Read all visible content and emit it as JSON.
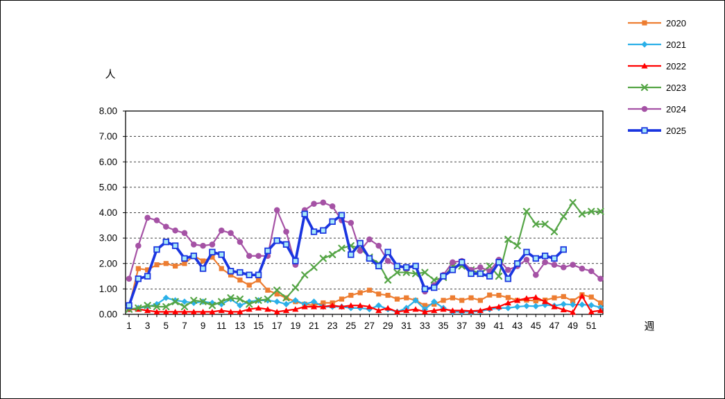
{
  "chart_data": {
    "type": "line",
    "xlabel": "週",
    "ylabel": "人",
    "x_weeks": 52,
    "xlim": [
      1,
      52
    ],
    "ylim": [
      0,
      8
    ],
    "grid": "horizontal-dashed",
    "legend_position": "top-right",
    "y_tick_labels": [
      "0.00",
      "1.00",
      "2.00",
      "3.00",
      "4.00",
      "5.00",
      "6.00",
      "7.00",
      "8.00"
    ],
    "x_tick_labels": [
      "1",
      "3",
      "5",
      "7",
      "9",
      "11",
      "13",
      "15",
      "17",
      "19",
      "21",
      "23",
      "25",
      "27",
      "29",
      "31",
      "33",
      "35",
      "37",
      "39",
      "41",
      "43",
      "45",
      "47",
      "49",
      "51"
    ],
    "series": [
      {
        "name": "2020",
        "color": "#ED7D31",
        "marker": "square",
        "line_width": 2.2,
        "values": [
          0.3,
          1.8,
          1.75,
          1.95,
          2.0,
          1.9,
          2.0,
          2.3,
          2.1,
          2.25,
          1.8,
          1.55,
          1.35,
          1.15,
          1.35,
          0.95,
          0.8,
          0.65,
          0.5,
          0.4,
          0.35,
          0.45,
          0.45,
          0.6,
          0.75,
          0.85,
          0.95,
          0.8,
          0.75,
          0.6,
          0.65,
          0.55,
          0.35,
          0.4,
          0.55,
          0.65,
          0.55,
          0.65,
          0.55,
          0.76,
          0.75,
          0.66,
          0.55,
          0.56,
          0.53,
          0.56,
          0.65,
          0.7,
          0.53,
          0.77,
          0.68,
          0.45
        ]
      },
      {
        "name": "2021",
        "color": "#2BB0E8",
        "marker": "diamond",
        "line_width": 2.2,
        "values": [
          0.2,
          0.25,
          0.3,
          0.4,
          0.65,
          0.55,
          0.5,
          0.45,
          0.5,
          0.45,
          0.4,
          0.6,
          0.35,
          0.5,
          0.55,
          0.55,
          0.5,
          0.4,
          0.55,
          0.4,
          0.5,
          0.3,
          0.3,
          0.3,
          0.25,
          0.25,
          0.2,
          0.35,
          0.2,
          0.1,
          0.25,
          0.55,
          0.2,
          0.5,
          0.25,
          0.1,
          0.1,
          0.1,
          0.12,
          0.2,
          0.25,
          0.25,
          0.3,
          0.33,
          0.32,
          0.37,
          0.34,
          0.4,
          0.38,
          0.38,
          0.36,
          0.27
        ]
      },
      {
        "name": "2022",
        "color": "#FF0000",
        "marker": "triangle",
        "line_width": 2.2,
        "values": [
          0.2,
          0.2,
          0.15,
          0.1,
          0.1,
          0.1,
          0.1,
          0.1,
          0.1,
          0.1,
          0.15,
          0.1,
          0.1,
          0.2,
          0.25,
          0.2,
          0.1,
          0.15,
          0.2,
          0.3,
          0.3,
          0.3,
          0.35,
          0.3,
          0.35,
          0.35,
          0.3,
          0.15,
          0.25,
          0.1,
          0.15,
          0.2,
          0.1,
          0.15,
          0.2,
          0.15,
          0.15,
          0.13,
          0.15,
          0.25,
          0.3,
          0.45,
          0.55,
          0.63,
          0.67,
          0.5,
          0.3,
          0.18,
          0.08,
          0.72,
          0.1,
          0.15
        ]
      },
      {
        "name": "2023",
        "color": "#55A546",
        "marker": "x",
        "line_width": 2.2,
        "values": [
          0.2,
          0.25,
          0.35,
          0.3,
          0.3,
          0.5,
          0.3,
          0.55,
          0.5,
          0.35,
          0.5,
          0.65,
          0.6,
          0.4,
          0.55,
          0.6,
          0.95,
          0.65,
          1.05,
          1.55,
          1.85,
          2.2,
          2.35,
          2.6,
          2.7,
          2.6,
          2.25,
          2.0,
          1.35,
          1.65,
          1.65,
          1.6,
          1.65,
          1.35,
          1.45,
          1.9,
          1.9,
          1.75,
          1.6,
          1.9,
          1.5,
          2.95,
          2.7,
          4.05,
          3.55,
          3.55,
          3.25,
          3.85,
          4.4,
          3.95,
          4.05,
          4.05
        ]
      },
      {
        "name": "2024",
        "color": "#A552A5",
        "marker": "circle",
        "line_width": 2.2,
        "values": [
          1.4,
          2.7,
          3.8,
          3.7,
          3.45,
          3.3,
          3.2,
          2.75,
          2.7,
          2.75,
          3.3,
          3.2,
          2.85,
          2.3,
          2.3,
          2.3,
          4.1,
          3.25,
          1.95,
          4.1,
          4.35,
          4.4,
          4.25,
          3.7,
          3.6,
          2.5,
          2.95,
          2.7,
          2.1,
          1.9,
          1.8,
          1.9,
          0.9,
          1.15,
          1.55,
          2.05,
          2.1,
          1.75,
          1.85,
          1.7,
          2.15,
          1.75,
          1.9,
          2.15,
          1.55,
          2.05,
          1.95,
          1.85,
          1.95,
          1.8,
          1.7,
          1.4
        ]
      },
      {
        "name": "2025",
        "color": "#1A35E0",
        "marker": "square-open",
        "marker_fill": "#A8EAF8",
        "line_width": 3.8,
        "values": [
          0.35,
          1.4,
          1.5,
          2.55,
          2.85,
          2.7,
          2.2,
          2.3,
          1.8,
          2.45,
          2.35,
          1.7,
          1.65,
          1.55,
          1.55,
          2.5,
          2.9,
          2.75,
          2.1,
          3.95,
          3.25,
          3.3,
          3.65,
          3.9,
          2.35,
          2.8,
          2.2,
          1.9,
          2.45,
          1.9,
          1.85,
          1.9,
          1.0,
          1.05,
          1.5,
          1.75,
          2.05,
          1.6,
          1.6,
          1.5,
          2.05,
          1.4,
          2.0,
          2.45,
          2.2,
          2.3,
          2.2,
          2.55
        ]
      }
    ]
  }
}
